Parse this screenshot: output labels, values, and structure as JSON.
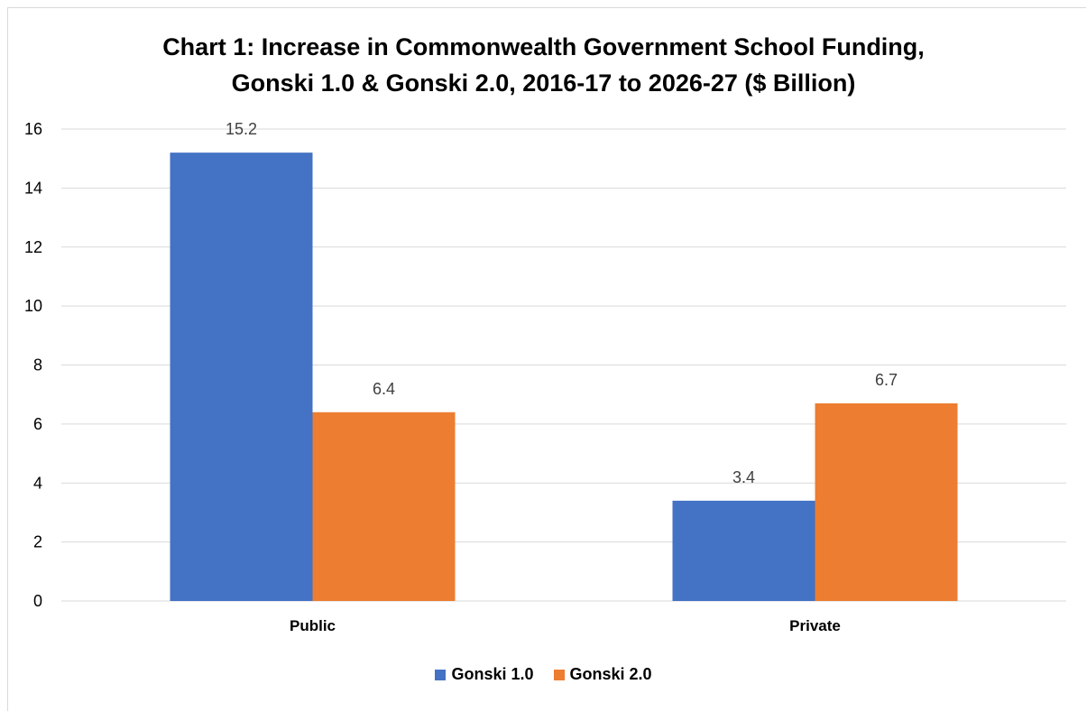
{
  "chart_data": {
    "type": "bar",
    "title_line1": "Chart 1: Increase in Commonwealth Government School Funding,",
    "title_line2": "Gonski 1.0 & Gonski 2.0, 2016-17 to 2026-27 ($ Billion)",
    "categories": [
      "Public",
      "Private"
    ],
    "series": [
      {
        "name": "Gonski 1.0",
        "values": [
          15.2,
          3.4
        ],
        "color": "#4472C4"
      },
      {
        "name": "Gonski 2.0",
        "values": [
          6.4,
          6.7
        ],
        "color": "#ED7D31"
      }
    ],
    "ylim": [
      0,
      16
    ],
    "yticks": [
      0,
      2,
      4,
      6,
      8,
      10,
      12,
      14,
      16
    ],
    "grid": true,
    "legend_position": "bottom"
  }
}
